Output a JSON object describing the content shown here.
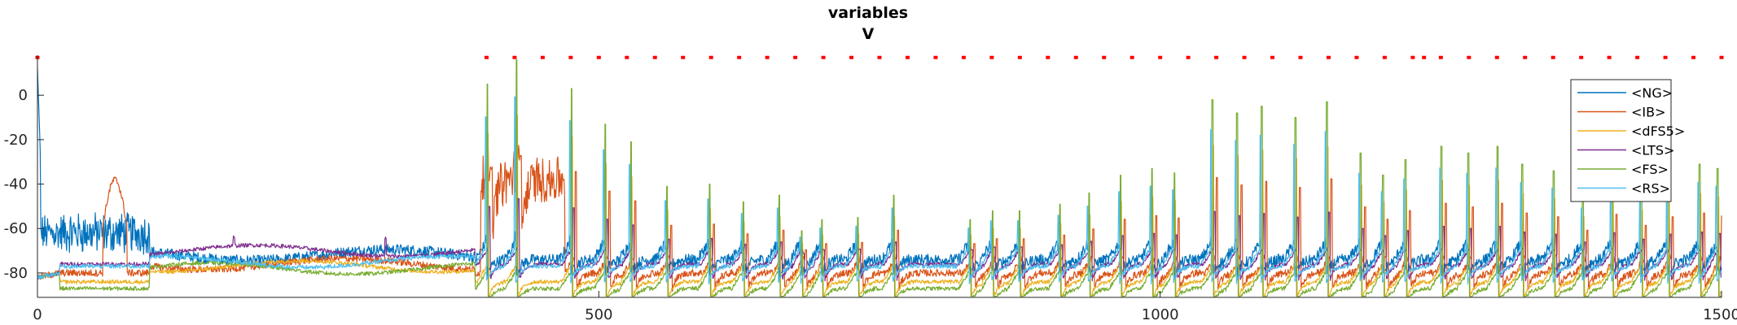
{
  "chart_data": {
    "type": "line",
    "title": "variables",
    "subtitle": "V",
    "xlabel": "",
    "ylabel": "",
    "xlim": [
      0,
      1500
    ],
    "ylim": [
      -91,
      18
    ],
    "xticks": [
      0,
      500,
      1000,
      1500
    ],
    "yticks": [
      -80,
      -60,
      -40,
      -20,
      0
    ],
    "grid": false,
    "legend_position": "top-right",
    "series": [
      {
        "name": "<NG>",
        "color": "#0072BD"
      },
      {
        "name": "<IB>",
        "color": "#D95319"
      },
      {
        "name": "<dFS5>",
        "color": "#EDB120"
      },
      {
        "name": "<LTS>",
        "color": "#7E2F8E"
      },
      {
        "name": "<FS>",
        "color": "#77AC30"
      },
      {
        "name": "<RS>",
        "color": "#4DBEEE"
      }
    ],
    "spike_raster": {
      "color": "#FF0000",
      "y": 17,
      "times": [
        0,
        400,
        425,
        450,
        475,
        500,
        525,
        550,
        575,
        600,
        625,
        650,
        675,
        700,
        725,
        750,
        775,
        800,
        825,
        850,
        875,
        900,
        925,
        950,
        975,
        1000,
        1025,
        1050,
        1075,
        1100,
        1125,
        1150,
        1175,
        1200,
        1225,
        1235,
        1250,
        1275,
        1300,
        1325,
        1350,
        1375,
        1400,
        1425,
        1450,
        1475,
        1500
      ]
    },
    "events": {
      "spike_times": [
        400,
        426,
        475,
        505,
        528,
        560,
        598,
        628,
        660,
        680,
        698,
        730,
        762,
        830,
        850,
        874,
        910,
        936,
        964,
        992,
        1012,
        1046,
        1068,
        1090,
        1120,
        1148,
        1178,
        1198,
        1218,
        1250,
        1274,
        1300,
        1322,
        1350,
        1376,
        1402,
        1428,
        1452,
        1480,
        1496
      ],
      "spike_peaks_fs": [
        5,
        16,
        3,
        -13,
        -21,
        -41,
        -40,
        -48,
        -45,
        -61,
        -56,
        -55,
        -45,
        -56,
        -52,
        -52,
        -49,
        -44,
        -36,
        -33,
        -35,
        -2,
        -8,
        -5,
        -10,
        -3,
        -26,
        -36,
        -29,
        -23,
        -26,
        -23,
        -31,
        -34,
        -45,
        -32,
        -41,
        -34,
        -31,
        -33
      ]
    }
  }
}
